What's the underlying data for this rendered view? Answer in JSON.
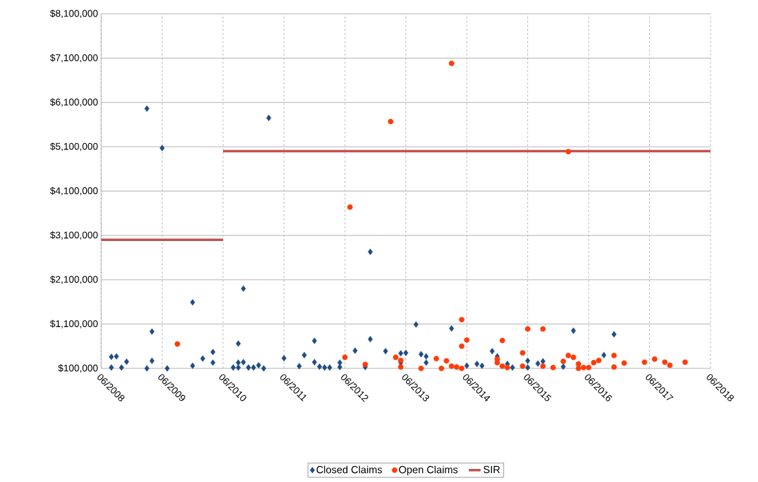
{
  "chart_data": {
    "type": "scatter",
    "xlim": [
      "2008-06",
      "2018-06"
    ],
    "xticks": [
      {
        "value": "2008-06",
        "label": "06/2008"
      },
      {
        "value": "2009-06",
        "label": "06/2009"
      },
      {
        "value": "2010-06",
        "label": "06/2010"
      },
      {
        "value": "2011-06",
        "label": "06/2011"
      },
      {
        "value": "2012-06",
        "label": "06/2012"
      },
      {
        "value": "2013-06",
        "label": "06/2013"
      },
      {
        "value": "2014-06",
        "label": "06/2014"
      },
      {
        "value": "2015-06",
        "label": "06/2015"
      },
      {
        "value": "2016-06",
        "label": "06/2016"
      },
      {
        "value": "2017-06",
        "label": "06/2017"
      },
      {
        "value": "2018-06",
        "label": "06/2018"
      }
    ],
    "ylim": [
      100000,
      8100000
    ],
    "yticks": [
      {
        "value": 100000,
        "label": "$100,000"
      },
      {
        "value": 1100000,
        "label": "$1,100,000"
      },
      {
        "value": 2100000,
        "label": "$2,100,000"
      },
      {
        "value": 3100000,
        "label": "$3,100,000"
      },
      {
        "value": 4100000,
        "label": "$4,100,000"
      },
      {
        "value": 5100000,
        "label": "$5,100,000"
      },
      {
        "value": 6100000,
        "label": "$6,100,000"
      },
      {
        "value": 7100000,
        "label": "$7,100,000"
      },
      {
        "value": 8100000,
        "label": "$8,100,000"
      }
    ],
    "grid": true,
    "legend": "bottom",
    "series": [
      {
        "name": "Closed Claims",
        "type": "scatter",
        "marker": "diamond",
        "color": "#1f4e86",
        "x": [
          "2008-08",
          "2008-09",
          "2008-08",
          "2008-10",
          "2008-11",
          "2009-03",
          "2009-04",
          "2009-04",
          "2009-07",
          "2009-12",
          "2009-12",
          "2010-02",
          "2010-04",
          "2010-04",
          "2010-10",
          "2010-09",
          "2010-08",
          "2010-09",
          "2010-09",
          "2010-10",
          "2010-11",
          "2010-12",
          "2011-01",
          "2011-02",
          "2011-06",
          "2011-09",
          "2011-10",
          "2011-12",
          "2011-12",
          "2009-03",
          "2009-06",
          "2011-03",
          "2012-11",
          "2012-01",
          "2012-02",
          "2012-03",
          "2012-05",
          "2012-05",
          "2012-08",
          "2012-10",
          "2012-11",
          "2013-02",
          "2013-05",
          "2013-06",
          "2013-05",
          "2013-05",
          "2013-08",
          "2013-09",
          "2013-10",
          "2013-10",
          "2014-03",
          "2014-06",
          "2014-08",
          "2014-09",
          "2014-11",
          "2014-12",
          "2015-02",
          "2015-03",
          "2015-06",
          "2015-06",
          "2015-08",
          "2015-09",
          "2016-01",
          "2016-03",
          "2016-09",
          "2016-11"
        ],
        "values": [
          360000,
          370000,
          120000,
          120000,
          250000,
          100000,
          930000,
          270000,
          100000,
          1590000,
          160000,
          320000,
          470000,
          230000,
          1900000,
          660000,
          120000,
          120000,
          230000,
          240000,
          120000,
          120000,
          170000,
          100000,
          330000,
          150000,
          400000,
          720000,
          240000,
          5960000,
          5070000,
          5750000,
          2730000,
          140000,
          120000,
          120000,
          130000,
          230000,
          500000,
          130000,
          760000,
          490000,
          440000,
          450000,
          230000,
          150000,
          1090000,
          420000,
          370000,
          230000,
          1000000,
          160000,
          200000,
          160000,
          490000,
          370000,
          200000,
          120000,
          270000,
          120000,
          210000,
          260000,
          140000,
          950000,
          400000,
          870000
        ]
      },
      {
        "name": "Open Claims",
        "type": "scatter",
        "marker": "circle",
        "color": "#ff3c0a",
        "x": [
          "2009-09",
          "2012-07",
          "2013-03",
          "2014-03",
          "2016-02",
          "2012-06",
          "2012-10",
          "2013-04",
          "2013-05",
          "2013-05",
          "2013-09",
          "2013-12",
          "2014-01",
          "2014-02",
          "2014-03",
          "2014-04",
          "2014-05",
          "2014-05",
          "2014-06",
          "2014-05",
          "2015-01",
          "2014-12",
          "2014-12",
          "2015-01",
          "2015-02",
          "2015-05",
          "2015-06",
          "2015-09",
          "2015-05",
          "2015-09",
          "2015-11",
          "2016-02",
          "2016-01",
          "2016-03",
          "2016-04",
          "2016-04",
          "2016-05",
          "2016-06",
          "2016-07",
          "2016-08",
          "2016-11",
          "2016-11",
          "2017-01",
          "2017-05",
          "2017-07",
          "2017-09",
          "2017-10",
          "2018-01"
        ],
        "values": [
          650000,
          3740000,
          5670000,
          6980000,
          4990000,
          350000,
          190000,
          350000,
          280000,
          130000,
          100000,
          320000,
          100000,
          270000,
          150000,
          130000,
          100000,
          1200000,
          740000,
          600000,
          730000,
          230000,
          310000,
          150000,
          120000,
          150000,
          990000,
          990000,
          450000,
          150000,
          120000,
          390000,
          260000,
          350000,
          200000,
          100000,
          120000,
          120000,
          230000,
          280000,
          390000,
          130000,
          220000,
          240000,
          310000,
          240000,
          170000,
          240000
        ]
      },
      {
        "name": "SIR",
        "type": "line",
        "marker": "none",
        "line_style": "solid",
        "color": "#c0504d",
        "x": [
          "2008-06",
          "2010-06",
          null,
          "2010-06",
          "2018-06"
        ],
        "values": [
          3000000,
          3000000,
          null,
          5000000,
          5000000
        ]
      }
    ]
  }
}
